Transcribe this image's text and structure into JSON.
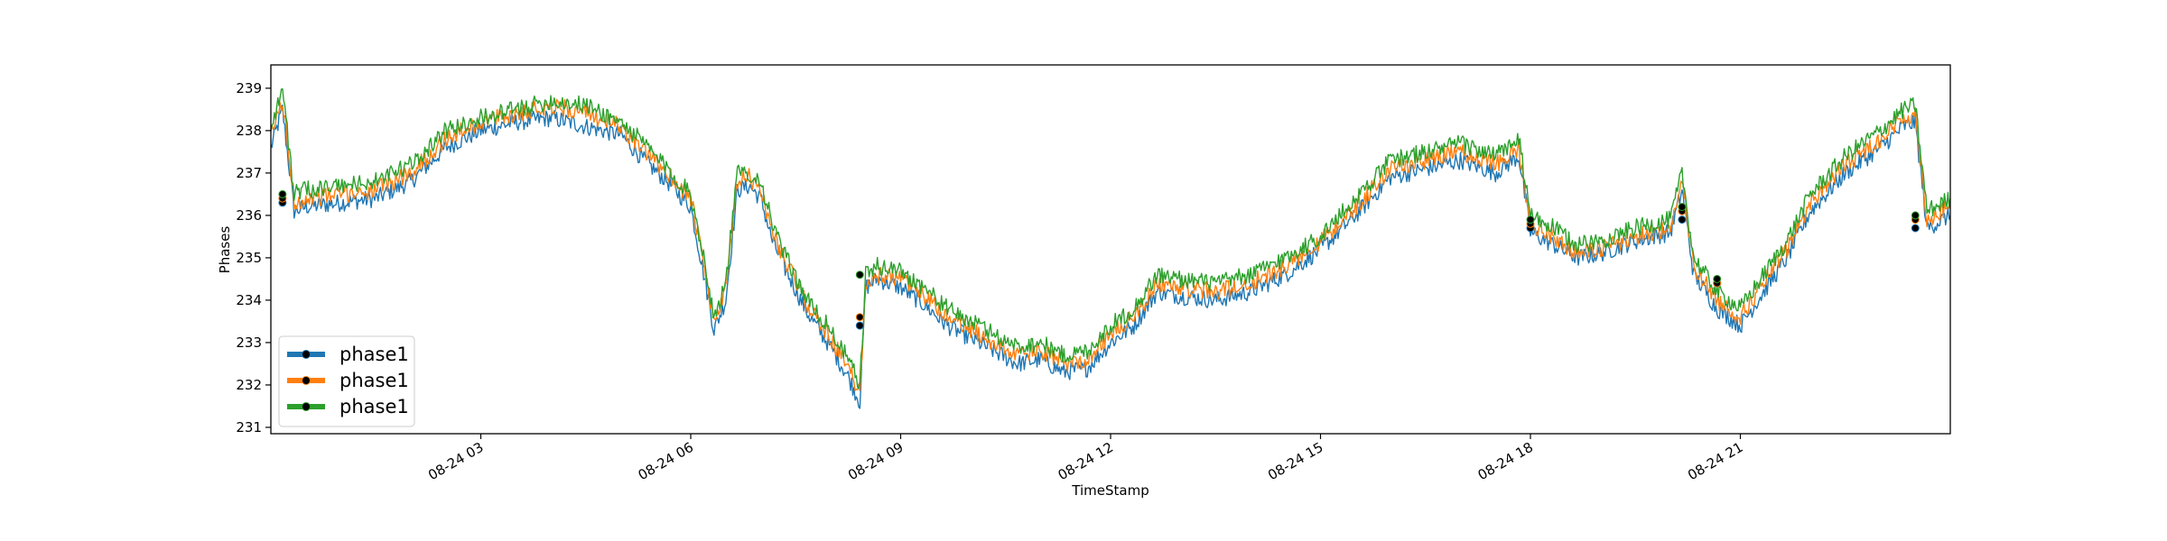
{
  "chart_data": {
    "type": "line",
    "title": "",
    "xlabel": "TimeStamp",
    "ylabel": "Phases",
    "ylim": [
      230.85,
      239.55
    ],
    "xlim": [
      "2020-08-24 00:00",
      "2020-08-25 00:00"
    ],
    "x_ticks": [
      "08-24 03",
      "08-24 06",
      "08-24 09",
      "08-24 12",
      "08-24 15",
      "08-24 18",
      "08-24 21"
    ],
    "y_ticks": [
      "231",
      "232",
      "233",
      "234",
      "235",
      "236",
      "237",
      "238",
      "239"
    ],
    "legend": {
      "location": "lower-left",
      "entries": [
        "phase1",
        "phase1",
        "phase1"
      ]
    },
    "grid": false,
    "series": [
      {
        "name": "phase1",
        "color": "#1f77b4",
        "x": [
          "00:00",
          "00:10",
          "00:20",
          "00:30",
          "01:00",
          "01:30",
          "02:00",
          "02:30",
          "03:00",
          "03:30",
          "04:00",
          "04:30",
          "05:00",
          "05:20",
          "05:40",
          "06:00",
          "06:10",
          "06:20",
          "06:30",
          "06:40",
          "06:50",
          "07:00",
          "07:10",
          "07:20",
          "07:40",
          "08:00",
          "08:15",
          "08:25",
          "08:30",
          "08:40",
          "09:00",
          "09:20",
          "09:40",
          "10:00",
          "10:20",
          "10:40",
          "11:00",
          "11:20",
          "11:40",
          "12:00",
          "12:20",
          "12:40",
          "13:00",
          "13:30",
          "14:00",
          "14:30",
          "15:00",
          "15:30",
          "16:00",
          "16:30",
          "17:00",
          "17:30",
          "17:50",
          "18:00",
          "18:20",
          "18:40",
          "19:00",
          "19:30",
          "20:00",
          "20:10",
          "20:20",
          "20:40",
          "21:00",
          "21:20",
          "21:40",
          "22:00",
          "22:30",
          "23:00",
          "23:20",
          "23:30",
          "23:40",
          "24:00"
        ],
        "y": [
          237.6,
          238.5,
          236.1,
          236.2,
          236.3,
          236.4,
          236.8,
          237.6,
          238.0,
          238.2,
          238.3,
          238.1,
          237.9,
          237.3,
          236.8,
          236.2,
          234.8,
          233.3,
          234.0,
          236.6,
          236.7,
          236.4,
          235.4,
          234.8,
          233.7,
          232.9,
          232.2,
          231.6,
          234.3,
          234.5,
          234.3,
          233.9,
          233.4,
          233.1,
          232.8,
          232.5,
          232.6,
          232.3,
          232.4,
          233.0,
          233.4,
          234.2,
          234.1,
          234.0,
          234.2,
          234.6,
          235.2,
          236.0,
          236.9,
          237.1,
          237.3,
          237.0,
          237.4,
          235.6,
          235.3,
          235.0,
          235.1,
          235.4,
          235.6,
          236.6,
          234.6,
          233.8,
          233.4,
          234.2,
          235.0,
          236.1,
          237.0,
          237.6,
          238.1,
          238.2,
          235.7,
          236.0
        ]
      },
      {
        "name": "phase1",
        "color": "#ff7f0e",
        "x": [
          "00:00",
          "00:10",
          "00:20",
          "00:30",
          "01:00",
          "01:30",
          "02:00",
          "02:30",
          "03:00",
          "03:30",
          "04:00",
          "04:30",
          "05:00",
          "05:20",
          "05:40",
          "06:00",
          "06:10",
          "06:20",
          "06:30",
          "06:40",
          "06:50",
          "07:00",
          "07:10",
          "07:20",
          "07:40",
          "08:00",
          "08:15",
          "08:25",
          "08:30",
          "08:40",
          "09:00",
          "09:20",
          "09:40",
          "10:00",
          "10:20",
          "10:40",
          "11:00",
          "11:20",
          "11:40",
          "12:00",
          "12:20",
          "12:40",
          "13:00",
          "13:30",
          "14:00",
          "14:30",
          "15:00",
          "15:30",
          "16:00",
          "16:30",
          "17:00",
          "17:30",
          "17:50",
          "18:00",
          "18:20",
          "18:40",
          "19:00",
          "19:30",
          "20:00",
          "20:10",
          "20:20",
          "20:40",
          "21:00",
          "21:20",
          "21:40",
          "22:00",
          "22:30",
          "23:00",
          "23:20",
          "23:30",
          "23:40",
          "24:00"
        ],
        "y": [
          237.9,
          238.7,
          236.3,
          236.4,
          236.5,
          236.6,
          237.0,
          237.8,
          238.2,
          238.4,
          238.6,
          238.4,
          238.1,
          237.5,
          237.0,
          236.4,
          235.0,
          233.5,
          234.2,
          236.8,
          236.9,
          236.6,
          235.6,
          235.0,
          233.9,
          233.1,
          232.4,
          231.8,
          234.4,
          234.6,
          234.5,
          234.1,
          233.6,
          233.3,
          233.0,
          232.7,
          232.8,
          232.5,
          232.6,
          233.2,
          233.6,
          234.4,
          234.3,
          234.2,
          234.4,
          234.8,
          235.4,
          236.2,
          237.1,
          237.3,
          237.5,
          237.2,
          237.6,
          235.8,
          235.5,
          235.1,
          235.2,
          235.5,
          235.7,
          236.8,
          234.8,
          234.0,
          233.6,
          234.4,
          235.2,
          236.3,
          237.2,
          237.8,
          238.3,
          238.4,
          235.9,
          236.2
        ]
      },
      {
        "name": "phase1",
        "color": "#2ca02c",
        "x": [
          "00:00",
          "00:10",
          "00:20",
          "00:30",
          "01:00",
          "01:30",
          "02:00",
          "02:30",
          "03:00",
          "03:30",
          "04:00",
          "04:30",
          "05:00",
          "05:20",
          "05:40",
          "06:00",
          "06:10",
          "06:20",
          "06:30",
          "06:40",
          "06:50",
          "07:00",
          "07:10",
          "07:20",
          "07:40",
          "08:00",
          "08:15",
          "08:25",
          "08:30",
          "08:40",
          "09:00",
          "09:20",
          "09:40",
          "10:00",
          "10:20",
          "10:40",
          "11:00",
          "11:20",
          "11:40",
          "12:00",
          "12:20",
          "12:40",
          "13:00",
          "13:30",
          "14:00",
          "14:30",
          "15:00",
          "15:30",
          "16:00",
          "16:30",
          "17:00",
          "17:30",
          "17:50",
          "18:00",
          "18:20",
          "18:40",
          "19:00",
          "19:30",
          "20:00",
          "20:10",
          "20:20",
          "20:40",
          "21:00",
          "21:20",
          "21:40",
          "22:00",
          "22:30",
          "23:00",
          "23:20",
          "23:30",
          "23:40",
          "24:00"
        ],
        "y": [
          238.1,
          239.0,
          236.5,
          236.6,
          236.7,
          236.8,
          237.2,
          238.0,
          238.3,
          238.5,
          238.7,
          238.6,
          238.2,
          237.7,
          237.1,
          236.5,
          235.2,
          233.6,
          234.4,
          237.0,
          237.0,
          236.8,
          235.8,
          235.1,
          234.0,
          233.3,
          232.6,
          232.0,
          234.6,
          234.8,
          234.7,
          234.3,
          233.8,
          233.5,
          233.2,
          232.9,
          233.0,
          232.7,
          232.8,
          233.4,
          233.8,
          234.6,
          234.5,
          234.4,
          234.6,
          235.0,
          235.5,
          236.4,
          237.3,
          237.5,
          237.7,
          237.4,
          237.8,
          236.0,
          235.7,
          235.3,
          235.4,
          235.7,
          235.9,
          237.0,
          235.0,
          234.2,
          233.8,
          234.6,
          235.4,
          236.5,
          237.4,
          238.0,
          238.5,
          238.6,
          236.1,
          236.4
        ]
      }
    ],
    "markers": {
      "x": [
        "00:10",
        "08:25",
        "18:00",
        "20:10",
        "20:40",
        "23:30"
      ],
      "y": [
        [
          236.3,
          236.4,
          236.5
        ],
        [
          233.4,
          233.6,
          234.6
        ],
        [
          235.7,
          235.8,
          235.9
        ],
        [
          235.9,
          236.1,
          236.2
        ],
        [
          234.4,
          234.4,
          234.5
        ],
        [
          235.7,
          235.9,
          236.0
        ]
      ],
      "color": "#000000"
    }
  }
}
